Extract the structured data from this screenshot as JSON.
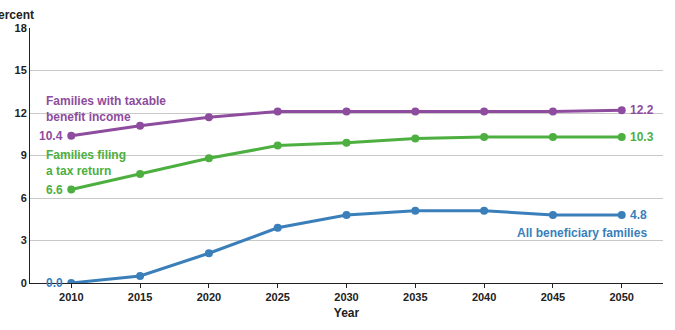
{
  "chart_data": {
    "type": "line",
    "x_label": "Year",
    "y_label": "Percent",
    "x": [
      2010,
      2015,
      2020,
      2025,
      2030,
      2035,
      2040,
      2045,
      2050
    ],
    "series": [
      {
        "name": "Families with taxable\nbenefit income",
        "color": "#8e4c9e",
        "marker": "circle",
        "values": [
          10.4,
          11.1,
          11.7,
          12.1,
          12.1,
          12.1,
          12.1,
          12.1,
          12.2
        ],
        "value_labels": [
          "10.4",
          null,
          null,
          null,
          null,
          null,
          null,
          null,
          "12.2"
        ]
      },
      {
        "name": "Families filing\na tax return",
        "color": "#4caf3f",
        "marker": "circle",
        "values": [
          6.6,
          7.7,
          8.8,
          9.7,
          9.9,
          10.2,
          10.3,
          10.3,
          10.3
        ],
        "value_labels": [
          "6.6",
          null,
          null,
          null,
          null,
          null,
          null,
          null,
          "10.3"
        ]
      },
      {
        "name": "All beneficiary families",
        "color": "#3a7fba",
        "marker": "circle",
        "values": [
          0.0,
          0.5,
          2.1,
          3.9,
          4.8,
          5.1,
          5.1,
          4.8,
          4.8
        ],
        "value_labels": [
          "0.0",
          null,
          null,
          null,
          null,
          null,
          null,
          null,
          "4.8"
        ]
      }
    ],
    "xlim": [
      2007,
      2053
    ],
    "xticks": [
      2010,
      2015,
      2020,
      2025,
      2030,
      2035,
      2040,
      2045,
      2050
    ],
    "ylim": [
      0,
      18
    ],
    "yticks": [
      0,
      3,
      6,
      9,
      12,
      15,
      18
    ],
    "grid": true,
    "data_labels": true
  }
}
